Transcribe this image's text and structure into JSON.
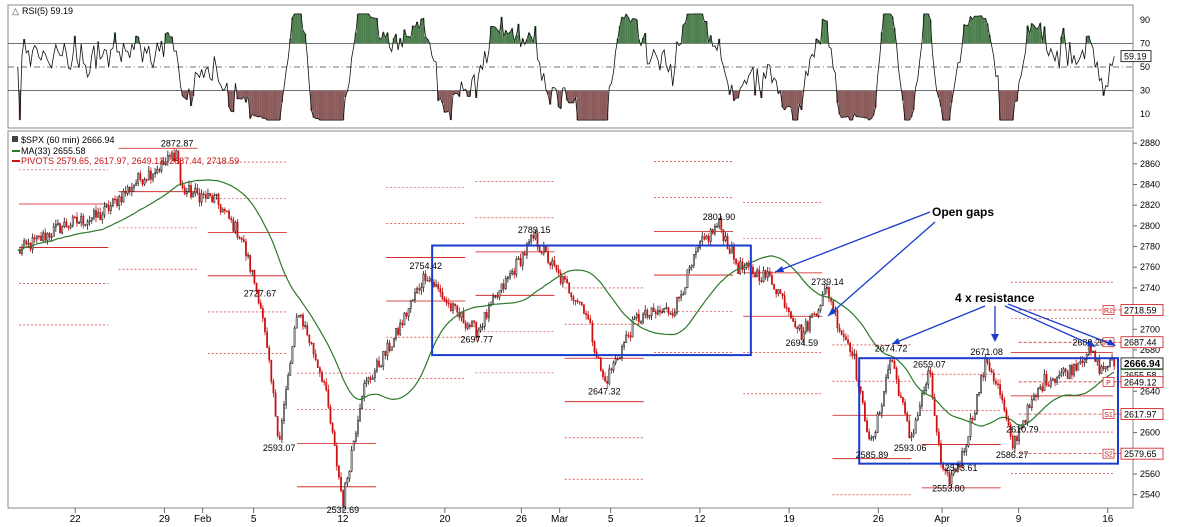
{
  "rsi_panel": {
    "label": "RSI(5) 59.19",
    "value_box": "59.19",
    "levels": [
      90,
      70,
      50,
      30,
      10
    ]
  },
  "price_panel": {
    "title": "$SPX (60 min) 2666.94",
    "ma_label": "MA(33) 2655.58",
    "pivots_label": "PIVOTS 2579.65, 2617.97, 2649.12, 2687.44, 2718.59",
    "last_price_box": "2666.94",
    "ma_box": "2655.58",
    "p_box": "2649.12",
    "r1_box": "2687.44",
    "r2_box": "2718.59",
    "s1_box": "2617.97",
    "s2_box": "2579.65",
    "pivot_tags": [
      "R2",
      "R1",
      "P",
      "S1",
      "S2"
    ]
  },
  "annotations": {
    "open_gaps": "Open gaps",
    "resistance": "4 x resistance"
  },
  "colors": {
    "up": "#1a1a1a",
    "down": "#cc1111",
    "ma": "#2a7a2a",
    "box": "#1a3ccc",
    "rsi_fill_high": "#4e7f4e",
    "rsi_fill_low": "#8b5a5a",
    "pivot": "#cc1111"
  },
  "chart_data": [
    {
      "type": "line",
      "title": "RSI(5) 59.19",
      "ylim": [
        0,
        100
      ],
      "yticks": [
        10,
        30,
        50,
        70,
        90
      ],
      "reference_lines": [
        70,
        50,
        30
      ],
      "series": [
        {
          "name": "RSI(5)",
          "last": 59.19
        }
      ]
    },
    {
      "type": "candlestick",
      "title": "$SPX (60 min) 2666.94",
      "ylim": [
        2530,
        2885
      ],
      "yticks": [
        2540,
        2560,
        2580,
        2600,
        2620,
        2640,
        2660,
        2680,
        2700,
        2720,
        2740,
        2760,
        2780,
        2800,
        2820,
        2840,
        2860,
        2880
      ],
      "xticks": [
        {
          "label": "22",
          "t": 0.0
        },
        {
          "label": "29",
          "t": 7.0
        },
        {
          "label": "Feb",
          "t": 10.0
        },
        {
          "label": "5",
          "t": 14.0
        },
        {
          "label": "12",
          "t": 21.0
        },
        {
          "label": "20",
          "t": 29.0
        },
        {
          "label": "26",
          "t": 35.0
        },
        {
          "label": "Mar",
          "t": 38.0
        },
        {
          "label": "5",
          "t": 42.0
        },
        {
          "label": "12",
          "t": 49.0
        },
        {
          "label": "19",
          "t": 56.0
        },
        {
          "label": "26",
          "t": 63.0
        },
        {
          "label": "Apr",
          "t": 68.0
        },
        {
          "label": "9",
          "t": 74.0
        },
        {
          "label": "16",
          "t": 81.0
        }
      ],
      "key_points": [
        {
          "t": -4.5,
          "v": 2775
        },
        {
          "t": -1.0,
          "v": 2800
        },
        {
          "t": 2.0,
          "v": 2810
        },
        {
          "t": 5.0,
          "v": 2845
        },
        {
          "t": 7.0,
          "v": 2860
        },
        {
          "t": 8.0,
          "v": 2872.87
        },
        {
          "t": 8.3,
          "v": 2835
        },
        {
          "t": 11.0,
          "v": 2825
        },
        {
          "t": 13.0,
          "v": 2790
        },
        {
          "t": 14.5,
          "v": 2727.67
        },
        {
          "t": 16.0,
          "v": 2593.07
        },
        {
          "t": 17.5,
          "v": 2720
        },
        {
          "t": 19.5,
          "v": 2650
        },
        {
          "t": 21.0,
          "v": 2532.69
        },
        {
          "t": 22.5,
          "v": 2640
        },
        {
          "t": 25.0,
          "v": 2690
        },
        {
          "t": 27.5,
          "v": 2754.42
        },
        {
          "t": 29.5,
          "v": 2720
        },
        {
          "t": 31.5,
          "v": 2697.77
        },
        {
          "t": 34.0,
          "v": 2750
        },
        {
          "t": 36.0,
          "v": 2789.15
        },
        {
          "t": 38.0,
          "v": 2750
        },
        {
          "t": 40.0,
          "v": 2720
        },
        {
          "t": 41.5,
          "v": 2647.32
        },
        {
          "t": 44.0,
          "v": 2710
        },
        {
          "t": 47.0,
          "v": 2720
        },
        {
          "t": 49.0,
          "v": 2780
        },
        {
          "t": 50.5,
          "v": 2801.9
        },
        {
          "t": 52.0,
          "v": 2760
        },
        {
          "t": 54.5,
          "v": 2750
        },
        {
          "t": 56.0,
          "v": 2720
        },
        {
          "t": 57.0,
          "v": 2694.59
        },
        {
          "t": 59.0,
          "v": 2739.14
        },
        {
          "t": 60.0,
          "v": 2700
        },
        {
          "t": 61.0,
          "v": 2680
        },
        {
          "t": 61.5,
          "v": 2640
        },
        {
          "t": 62.5,
          "v": 2585.89
        },
        {
          "t": 64.0,
          "v": 2674.72
        },
        {
          "t": 65.5,
          "v": 2593.06
        },
        {
          "t": 67.0,
          "v": 2659.07
        },
        {
          "t": 68.0,
          "v": 2560
        },
        {
          "t": 68.5,
          "v": 2553.8
        },
        {
          "t": 69.5,
          "v": 2573.61
        },
        {
          "t": 71.5,
          "v": 2671.08
        },
        {
          "t": 72.5,
          "v": 2640
        },
        {
          "t": 73.5,
          "v": 2586.27
        },
        {
          "t": 74.3,
          "v": 2610.79
        },
        {
          "t": 76.0,
          "v": 2650
        },
        {
          "t": 78.0,
          "v": 2660
        },
        {
          "t": 79.5,
          "v": 2680.26
        },
        {
          "t": 80.5,
          "v": 2660
        },
        {
          "t": 81.0,
          "v": 2666.94
        }
      ],
      "price_labels": [
        {
          "text": "2872.87",
          "t": 8.0,
          "v": 2872.87,
          "pos": "above"
        },
        {
          "text": "2727.67",
          "t": 14.5,
          "v": 2727.67,
          "pos": "above"
        },
        {
          "text": "2593.07",
          "t": 16.0,
          "v": 2593.07,
          "pos": "below"
        },
        {
          "text": "2532.69",
          "t": 21.0,
          "v": 2532.69,
          "pos": "below"
        },
        {
          "text": "2754.42",
          "t": 27.5,
          "v": 2754.42,
          "pos": "above"
        },
        {
          "text": "2697.77",
          "t": 31.5,
          "v": 2697.77,
          "pos": "below"
        },
        {
          "text": "2789.15",
          "t": 36.0,
          "v": 2789.15,
          "pos": "above"
        },
        {
          "text": "2647.32",
          "t": 41.5,
          "v": 2647.32,
          "pos": "below"
        },
        {
          "text": "2801.90",
          "t": 50.5,
          "v": 2801.9,
          "pos": "above"
        },
        {
          "text": "2694.59",
          "t": 57.0,
          "v": 2694.59,
          "pos": "below"
        },
        {
          "text": "2739.14",
          "t": 59.0,
          "v": 2739.14,
          "pos": "above"
        },
        {
          "text": "2585.89",
          "t": 62.5,
          "v": 2585.89,
          "pos": "below"
        },
        {
          "text": "2674.72",
          "t": 64.0,
          "v": 2674.72,
          "pos": "above"
        },
        {
          "text": "2593.06",
          "t": 65.5,
          "v": 2593.06,
          "pos": "below"
        },
        {
          "text": "2659.07",
          "t": 67.0,
          "v": 2659.07,
          "pos": "above"
        },
        {
          "text": "2553.80",
          "t": 68.5,
          "v": 2553.8,
          "pos": "below"
        },
        {
          "text": "2573.61",
          "t": 69.5,
          "v": 2573.61,
          "pos": "below"
        },
        {
          "text": "2671.08",
          "t": 71.5,
          "v": 2671.08,
          "pos": "above"
        },
        {
          "text": "2586.27",
          "t": 73.5,
          "v": 2586.27,
          "pos": "below"
        },
        {
          "text": "2610.79",
          "t": 74.3,
          "v": 2610.79,
          "pos": "below"
        },
        {
          "text": "2680.26",
          "t": 79.5,
          "v": 2680.26,
          "pos": "above"
        }
      ],
      "boxes": [
        {
          "t1": 28.0,
          "t2": 53.0,
          "v1": 2675,
          "v2": 2781
        },
        {
          "t1": 61.5,
          "t2": 81.8,
          "v1": 2570,
          "v2": 2672
        }
      ],
      "pivot_levels": [
        2579.65,
        2617.97,
        2649.12,
        2687.44,
        2718.59
      ]
    }
  ]
}
